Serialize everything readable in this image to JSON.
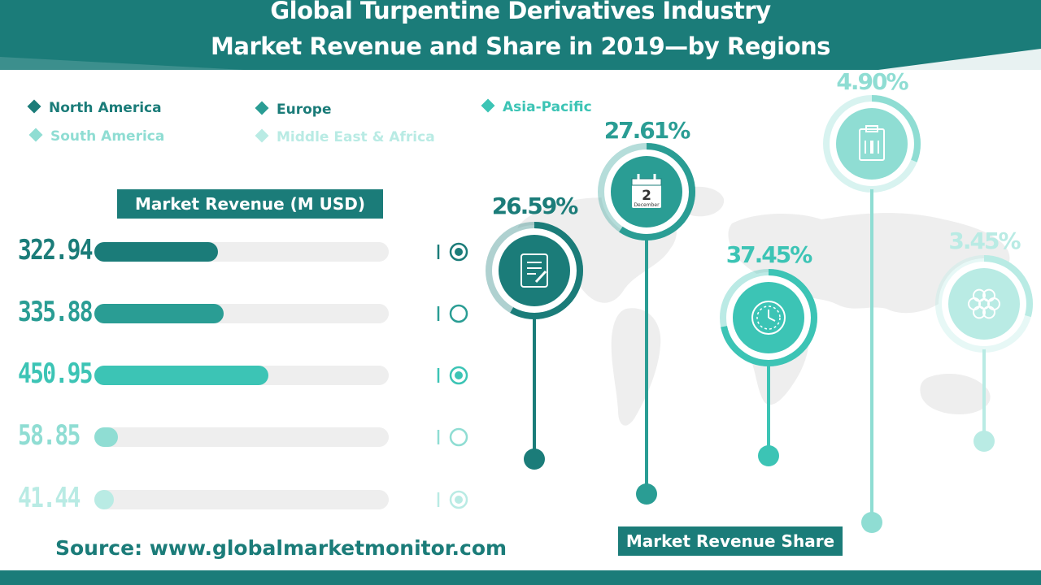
{
  "title": {
    "line1": "Global Turpentine Derivatives Industry",
    "line2": "Market Revenue and Share in 2019—by Regions"
  },
  "colors": {
    "header": "#1b7c79",
    "dark_text": "#1b7c79",
    "north_america": "#1b7c79",
    "europe": "#2a9d94",
    "asia_pacific": "#3cc4b5",
    "south_america": "#8fddd3",
    "middle_east_africa": "#b9ebe4",
    "track": "#eeeeee"
  },
  "legend": [
    {
      "label": "North America"
    },
    {
      "label": "Europe"
    },
    {
      "label": "Asia-Pacific"
    },
    {
      "label": "South America"
    },
    {
      "label": "Middle East & Africa"
    }
  ],
  "revenue_header": "Market Revenue (M USD)",
  "share_header": "Market Revenue Share",
  "source": "Source: www.globalmarketmonitor.com",
  "chart_data": [
    {
      "type": "bar",
      "title": "Market Revenue (M USD)",
      "categories": [
        "North America",
        "Europe",
        "Asia-Pacific",
        "South America",
        "Middle East & Africa"
      ],
      "values": [
        322.94,
        335.88,
        450.95,
        58.85,
        41.44
      ],
      "value_labels": [
        "322.94",
        "335.88",
        "450.95",
        "58.85",
        "41.44"
      ],
      "fill_fraction": [
        0.42,
        0.44,
        0.59,
        0.08,
        0.05
      ]
    },
    {
      "type": "pie",
      "title": "Market Revenue Share",
      "categories": [
        "North America",
        "Europe",
        "Asia-Pacific",
        "South America",
        "Middle East & Africa"
      ],
      "values": [
        26.59,
        27.61,
        37.45,
        4.9,
        3.45
      ],
      "value_labels": [
        "26.59%",
        "27.61%",
        "37.45%",
        "4.90%",
        "3.45%"
      ],
      "icons": [
        "document-pen-icon",
        "calendar-icon",
        "clock-icon",
        "clipboard-pencil-icon",
        "flower-icon"
      ],
      "calendar_day": "2",
      "calendar_month": "December"
    }
  ]
}
